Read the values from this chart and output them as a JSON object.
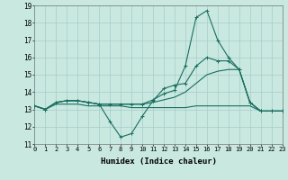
{
  "xlabel": "Humidex (Indice chaleur)",
  "bg_color": "#c8e8e0",
  "grid_color": "#a8cccc",
  "line_color": "#1a6e60",
  "xlim": [
    0,
    23
  ],
  "ylim": [
    11,
    19
  ],
  "yticks": [
    11,
    12,
    13,
    14,
    15,
    16,
    17,
    18,
    19
  ],
  "xticks": [
    0,
    1,
    2,
    3,
    4,
    5,
    6,
    7,
    8,
    9,
    10,
    11,
    12,
    13,
    14,
    15,
    16,
    17,
    18,
    19,
    20,
    21,
    22,
    23
  ],
  "line1_x": [
    0,
    1,
    2,
    3,
    4,
    5,
    6,
    7,
    8,
    9,
    10,
    11,
    12,
    13,
    14,
    15,
    16,
    17,
    18,
    19,
    20,
    21,
    22,
    23
  ],
  "line1_y": [
    13.2,
    13.0,
    13.4,
    13.5,
    13.5,
    13.4,
    13.3,
    12.3,
    11.4,
    11.6,
    12.6,
    13.5,
    14.2,
    14.4,
    14.5,
    15.5,
    16.0,
    15.8,
    15.8,
    15.3,
    13.4,
    12.9,
    12.9,
    12.9
  ],
  "line2_x": [
    0,
    1,
    2,
    3,
    4,
    5,
    6,
    7,
    8,
    9,
    10,
    11,
    12,
    13,
    14,
    15,
    16,
    17,
    18,
    19,
    20,
    21,
    22,
    23
  ],
  "line2_y": [
    13.2,
    13.0,
    13.4,
    13.5,
    13.5,
    13.4,
    13.3,
    13.3,
    13.3,
    13.3,
    13.3,
    13.4,
    13.55,
    13.7,
    14.0,
    14.5,
    15.0,
    15.2,
    15.3,
    15.3,
    13.4,
    12.9,
    12.9,
    12.9
  ],
  "line3_x": [
    0,
    1,
    2,
    3,
    4,
    5,
    6,
    7,
    8,
    9,
    10,
    11,
    12,
    13,
    14,
    15,
    16,
    17,
    18,
    19,
    20,
    21,
    22,
    23
  ],
  "line3_y": [
    13.2,
    13.0,
    13.4,
    13.5,
    13.5,
    13.4,
    13.3,
    13.3,
    13.3,
    13.3,
    13.3,
    13.55,
    13.9,
    14.1,
    15.5,
    18.3,
    18.7,
    17.0,
    16.0,
    15.3,
    13.4,
    12.9,
    12.9,
    12.9
  ],
  "line4_x": [
    0,
    1,
    2,
    3,
    4,
    5,
    6,
    7,
    8,
    9,
    10,
    11,
    12,
    13,
    14,
    15,
    16,
    17,
    18,
    19,
    20,
    21,
    22,
    23
  ],
  "line4_y": [
    13.2,
    13.0,
    13.3,
    13.3,
    13.3,
    13.2,
    13.2,
    13.2,
    13.2,
    13.1,
    13.1,
    13.1,
    13.1,
    13.1,
    13.1,
    13.2,
    13.2,
    13.2,
    13.2,
    13.2,
    13.2,
    12.9,
    12.9,
    12.9
  ]
}
